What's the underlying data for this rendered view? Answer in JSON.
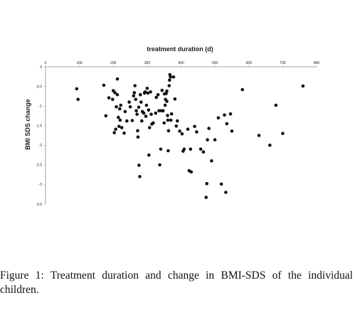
{
  "chart_data": {
    "type": "scatter",
    "title": "",
    "xlabel": "treatment duration (d)",
    "ylabel": "BMI SDS change",
    "xlim": [
      0,
      800
    ],
    "ylim": [
      -3.5,
      0
    ],
    "x_ticks": [
      0,
      100,
      200,
      300,
      400,
      500,
      600,
      700,
      800
    ],
    "y_ticks": [
      0,
      -0.5,
      -1,
      -1.5,
      -2,
      -2.5,
      -3,
      -3.5
    ],
    "x_tick_labels": [
      "0",
      "100",
      "200",
      "300",
      "400",
      "500",
      "600",
      "700",
      "800"
    ],
    "y_tick_labels": [
      "0",
      "-0.5",
      "-1",
      "-1.5",
      "-2",
      "-2.5",
      "-3",
      "-3.5"
    ],
    "x_axis_position": "top",
    "grid": false,
    "marker_color": "#111111",
    "points": [
      [
        92,
        -0.56
      ],
      [
        96,
        -0.83
      ],
      [
        172,
        -0.47
      ],
      [
        178,
        -1.25
      ],
      [
        187,
        -0.79
      ],
      [
        198,
        -0.83
      ],
      [
        200,
        -0.61
      ],
      [
        203,
        -1.68
      ],
      [
        205,
        -0.66
      ],
      [
        207,
        -1.59
      ],
      [
        209,
        -1.02
      ],
      [
        212,
        -0.31
      ],
      [
        212,
        -0.71
      ],
      [
        215,
        -1.29
      ],
      [
        217,
        -1.52
      ],
      [
        219,
        -1.07
      ],
      [
        220,
        -1.36
      ],
      [
        222,
        -0.98
      ],
      [
        225,
        -1.55
      ],
      [
        232,
        -1.69
      ],
      [
        235,
        -1.14
      ],
      [
        240,
        -1.38
      ],
      [
        247,
        -0.9
      ],
      [
        250,
        -1.02
      ],
      [
        256,
        -1.37
      ],
      [
        260,
        -0.74
      ],
      [
        262,
        -0.66
      ],
      [
        264,
        -0.48
      ],
      [
        266,
        -0.83
      ],
      [
        268,
        -1.12
      ],
      [
        270,
        -1.21
      ],
      [
        272,
        -1.63
      ],
      [
        273,
        -1.79
      ],
      [
        275,
        -1.03
      ],
      [
        276,
        -2.51
      ],
      [
        278,
        -2.8
      ],
      [
        280,
        -0.71
      ],
      [
        282,
        -0.9
      ],
      [
        284,
        -1.38
      ],
      [
        286,
        -1.14
      ],
      [
        290,
        -1.18
      ],
      [
        292,
        -0.67
      ],
      [
        294,
        -0.64
      ],
      [
        296,
        -1.26
      ],
      [
        298,
        -0.98
      ],
      [
        300,
        -0.55
      ],
      [
        302,
        -0.67
      ],
      [
        304,
        -1.1
      ],
      [
        305,
        -2.25
      ],
      [
        307,
        -1.55
      ],
      [
        310,
        -0.64
      ],
      [
        312,
        -1.21
      ],
      [
        314,
        -1.46
      ],
      [
        318,
        -1.43
      ],
      [
        325,
        -1.18
      ],
      [
        327,
        -0.78
      ],
      [
        332,
        -0.71
      ],
      [
        335,
        -1.12
      ],
      [
        337,
        -2.5
      ],
      [
        340,
        -2.1
      ],
      [
        342,
        -1.12
      ],
      [
        344,
        -0.6
      ],
      [
        347,
        -1.12
      ],
      [
        350,
        -1.43
      ],
      [
        351,
        -0.69
      ],
      [
        353,
        -0.98
      ],
      [
        354,
        -0.83
      ],
      [
        356,
        -0.68
      ],
      [
        358,
        -0.62
      ],
      [
        358,
        -0.88
      ],
      [
        360,
        -1.24
      ],
      [
        361,
        -1.36
      ],
      [
        362,
        -2.14
      ],
      [
        363,
        -1.63
      ],
      [
        365,
        -0.48
      ],
      [
        366,
        -0.34
      ],
      [
        367,
        -0.2
      ],
      [
        369,
        -0.26
      ],
      [
        370,
        -1.36
      ],
      [
        372,
        -1.2
      ],
      [
        378,
        -0.26
      ],
      [
        382,
        -0.82
      ],
      [
        386,
        -1.51
      ],
      [
        389,
        -1.38
      ],
      [
        396,
        -1.64
      ],
      [
        403,
        -1.71
      ],
      [
        406,
        -2.15
      ],
      [
        409,
        -2.1
      ],
      [
        420,
        -1.59
      ],
      [
        424,
        -2.65
      ],
      [
        428,
        -2.1
      ],
      [
        430,
        -2.68
      ],
      [
        440,
        -1.52
      ],
      [
        446,
        -1.66
      ],
      [
        458,
        -2.1
      ],
      [
        466,
        -2.17
      ],
      [
        474,
        -3.33
      ],
      [
        476,
        -2.98
      ],
      [
        478,
        -1.86
      ],
      [
        482,
        -1.57
      ],
      [
        490,
        -2.4
      ],
      [
        500,
        -1.86
      ],
      [
        510,
        -1.3
      ],
      [
        519,
        -2.99
      ],
      [
        528,
        -1.23
      ],
      [
        532,
        -3.2
      ],
      [
        535,
        -1.45
      ],
      [
        546,
        -1.2
      ],
      [
        550,
        -1.64
      ],
      [
        581,
        -0.58
      ],
      [
        630,
        -1.75
      ],
      [
        662,
        -2.0
      ],
      [
        680,
        -0.98
      ],
      [
        700,
        -1.7
      ],
      [
        760,
        -0.49
      ]
    ]
  },
  "caption": {
    "label": "Figure 1:",
    "text": " Treatment duration and change in BMI-SDS of the individual children."
  }
}
